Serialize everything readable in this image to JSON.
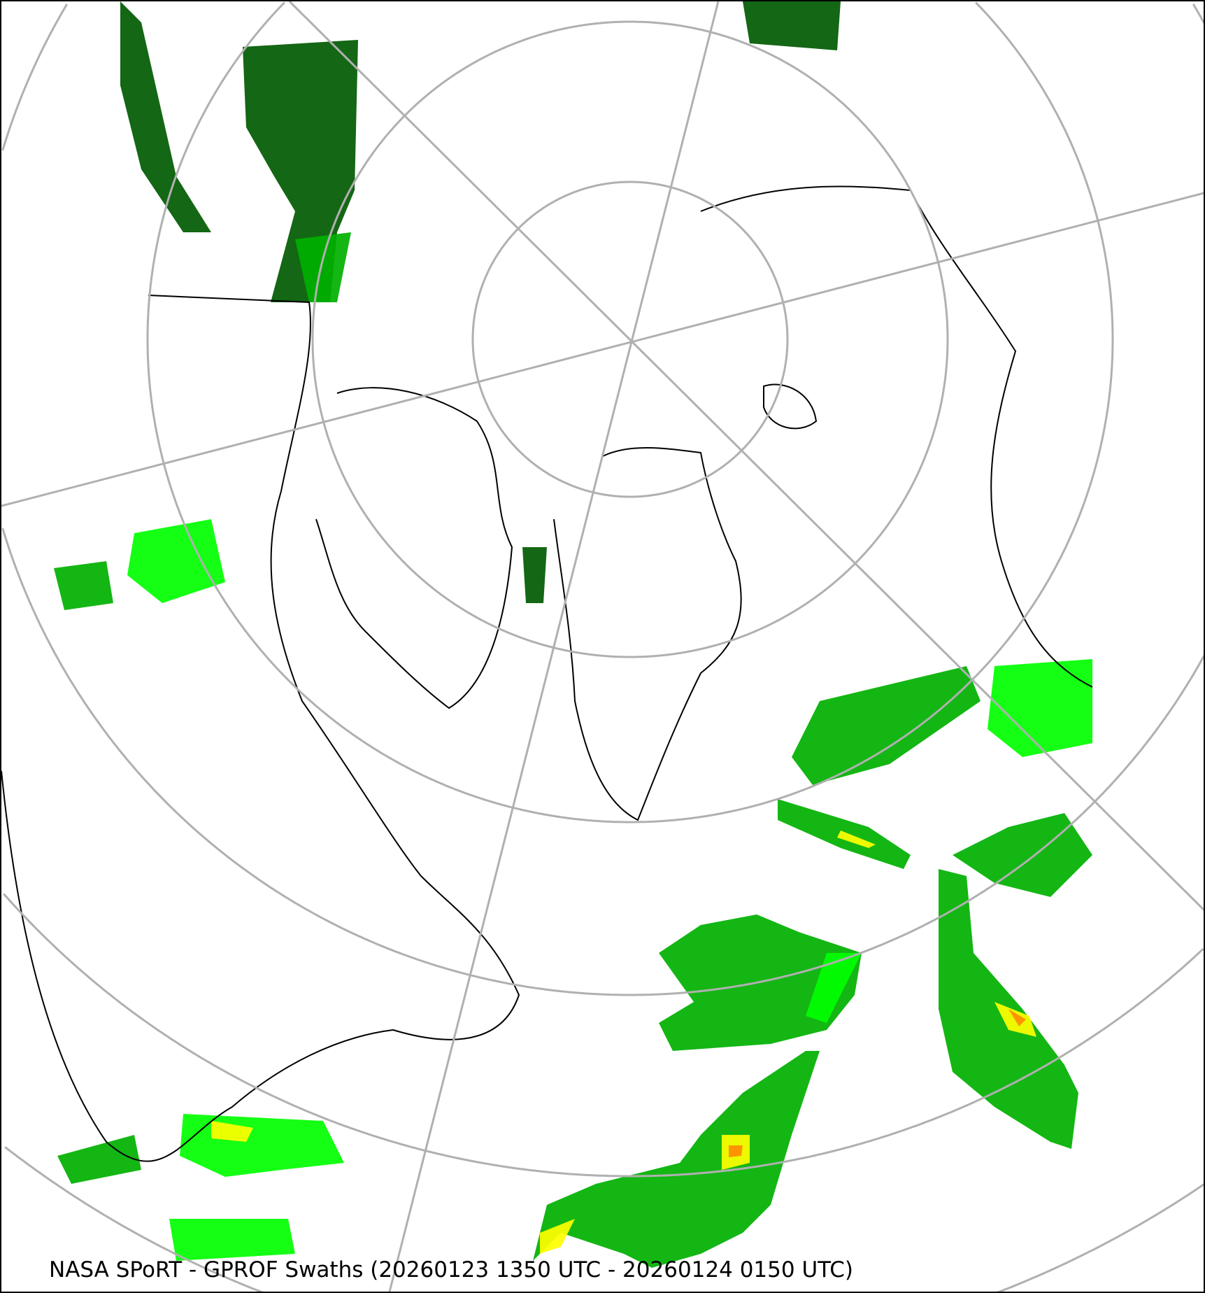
{
  "caption": "NASA SPoRT - GPROF Swaths (20260123 1350 UTC - 20260124 0150 UTC)",
  "map": {
    "projection": "north polar stereographic",
    "product": "GPROF precipitation swaths",
    "colors": {
      "grid": "#b0b0b0",
      "coast": "#000000",
      "light_precip": "#005a00",
      "moderate_precip": "#00b000",
      "heavy_precip": "#00ff00",
      "very_heavy": "#ffff00",
      "intense": "#ff8c00",
      "extreme": "#ff0000"
    }
  }
}
